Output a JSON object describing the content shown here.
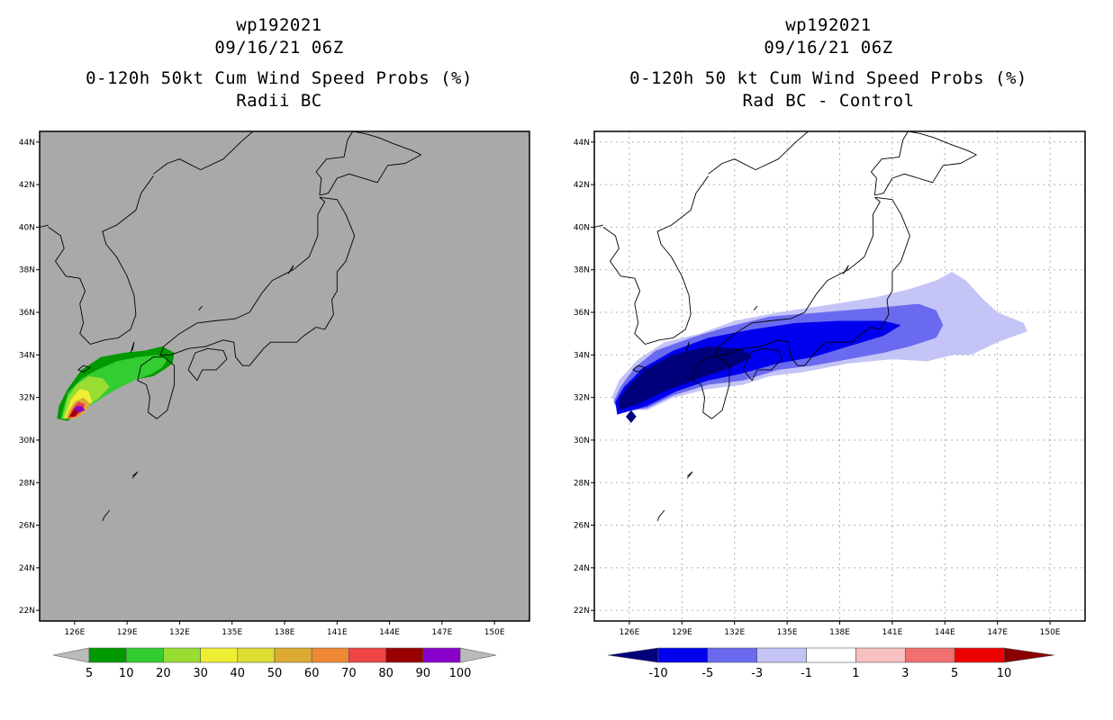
{
  "chart_data": [
    {
      "type": "heatmap",
      "panel": "left",
      "title": [
        "wp192021",
        "09/16/21 06Z",
        "0-120h 50kt Cum Wind Speed Probs (%)",
        "Radii BC"
      ],
      "background_color": "#a9a9a9",
      "xlim": [
        124,
        152
      ],
      "ylim": [
        21.5,
        44.5
      ],
      "x_ticks": [
        126,
        129,
        132,
        135,
        138,
        141,
        144,
        147,
        150
      ],
      "x_tick_labels": [
        "126E",
        "129E",
        "132E",
        "135E",
        "138E",
        "141E",
        "144E",
        "147E",
        "150E"
      ],
      "y_ticks": [
        22,
        24,
        26,
        28,
        30,
        32,
        34,
        36,
        38,
        40,
        42,
        44
      ],
      "y_tick_labels": [
        "22N",
        "24N",
        "26N",
        "28N",
        "30N",
        "32N",
        "34N",
        "36N",
        "38N",
        "40N",
        "42N",
        "44N"
      ],
      "grid": false,
      "colorbar": {
        "levels": [
          "5",
          "10",
          "20",
          "30",
          "40",
          "50",
          "60",
          "70",
          "80",
          "90",
          "100"
        ],
        "colors": [
          "#009900",
          "#33cc33",
          "#99dd33",
          "#eeee33",
          "#dddd33",
          "#ddaa33",
          "#ee8833",
          "#ee4444",
          "#990000",
          "#8800cc"
        ],
        "extend_colors": [
          "#bbbbbb",
          "#bbbbbb"
        ]
      },
      "contours": [
        {
          "level": "5",
          "color": "#009900",
          "polygon": [
            [
              125.0,
              31.0
            ],
            [
              125.6,
              30.9
            ],
            [
              126.4,
              31.3
            ],
            [
              127.3,
              31.9
            ],
            [
              128.2,
              32.3
            ],
            [
              129.2,
              32.8
            ],
            [
              130.5,
              33.0
            ],
            [
              131.1,
              33.3
            ],
            [
              131.6,
              33.6
            ],
            [
              131.7,
              34.1
            ],
            [
              131.0,
              34.4
            ],
            [
              130.0,
              34.2
            ],
            [
              128.8,
              34.1
            ],
            [
              127.5,
              33.9
            ],
            [
              126.4,
              33.3
            ],
            [
              125.6,
              32.4
            ],
            [
              125.1,
              31.6
            ]
          ]
        },
        {
          "level": "10",
          "color": "#33cc33",
          "polygon": [
            [
              125.2,
              31.0
            ],
            [
              125.7,
              31.0
            ],
            [
              126.5,
              31.4
            ],
            [
              127.4,
              31.9
            ],
            [
              128.4,
              32.4
            ],
            [
              129.4,
              32.8
            ],
            [
              130.4,
              33.1
            ],
            [
              131.0,
              33.4
            ],
            [
              131.3,
              33.8
            ],
            [
              130.7,
              34.0
            ],
            [
              129.6,
              33.9
            ],
            [
              128.4,
              33.7
            ],
            [
              127.3,
              33.3
            ],
            [
              126.4,
              32.9
            ],
            [
              125.6,
              32.2
            ]
          ]
        },
        {
          "level": "20",
          "color": "#99dd33",
          "polygon": [
            [
              125.3,
              31.0
            ],
            [
              125.8,
              31.0
            ],
            [
              126.6,
              31.5
            ],
            [
              127.4,
              32.0
            ],
            [
              128.0,
              32.5
            ],
            [
              127.6,
              32.9
            ],
            [
              126.8,
              33.0
            ],
            [
              126.1,
              32.6
            ],
            [
              125.6,
              32.0
            ]
          ]
        },
        {
          "level": "30",
          "color": "#eeee33",
          "polygon": [
            [
              125.4,
              31.0
            ],
            [
              125.9,
              31.0
            ],
            [
              126.6,
              31.4
            ],
            [
              127.0,
              31.8
            ],
            [
              126.8,
              32.3
            ],
            [
              126.3,
              32.4
            ],
            [
              125.8,
              31.9
            ]
          ]
        },
        {
          "level": "50",
          "color": "#ddaa33",
          "polygon": [
            [
              125.5,
              31.0
            ],
            [
              126.0,
              31.0
            ],
            [
              126.6,
              31.3
            ],
            [
              126.9,
              31.7
            ],
            [
              126.5,
              32.0
            ],
            [
              126.0,
              31.8
            ],
            [
              125.7,
              31.4
            ]
          ]
        },
        {
          "level": "70",
          "color": "#ee4444",
          "polygon": [
            [
              125.6,
              31.0
            ],
            [
              126.1,
              31.1
            ],
            [
              126.5,
              31.4
            ],
            [
              126.6,
              31.7
            ],
            [
              126.2,
              31.8
            ],
            [
              125.9,
              31.5
            ]
          ]
        },
        {
          "level": "80",
          "color": "#990000",
          "polygon": [
            [
              125.7,
              31.1
            ],
            [
              126.0,
              31.1
            ],
            [
              126.3,
              31.4
            ],
            [
              126.3,
              31.6
            ],
            [
              126.0,
              31.5
            ]
          ]
        },
        {
          "level": "90",
          "color": "#8800cc",
          "polygon": [
            [
              126.0,
              31.4
            ],
            [
              126.3,
              31.3
            ],
            [
              126.6,
              31.4
            ],
            [
              126.4,
              31.6
            ],
            [
              126.1,
              31.6
            ]
          ]
        }
      ]
    },
    {
      "type": "heatmap",
      "panel": "right",
      "title": [
        "wp192021",
        "09/16/21 06Z",
        "0-120h 50 kt Cum Wind Speed Probs (%)",
        "Rad BC - Control"
      ],
      "background_color": "#ffffff",
      "xlim": [
        124,
        152
      ],
      "ylim": [
        21.5,
        44.5
      ],
      "x_ticks": [
        126,
        129,
        132,
        135,
        138,
        141,
        144,
        147,
        150
      ],
      "x_tick_labels": [
        "126E",
        "129E",
        "132E",
        "135E",
        "138E",
        "141E",
        "144E",
        "147E",
        "150E"
      ],
      "y_ticks": [
        22,
        24,
        26,
        28,
        30,
        32,
        34,
        36,
        38,
        40,
        42,
        44
      ],
      "y_tick_labels": [
        "22N",
        "24N",
        "26N",
        "28N",
        "30N",
        "32N",
        "34N",
        "36N",
        "38N",
        "40N",
        "42N",
        "44N"
      ],
      "grid": true,
      "colorbar": {
        "levels": [
          "-10",
          "-5",
          "-3",
          "-1",
          "1",
          "3",
          "5",
          "10"
        ],
        "colors": [
          "#0000ee",
          "#6a6af0",
          "#c4c4f6",
          "#ffffff",
          "#f8c0c0",
          "#f07070",
          "#ee0000"
        ],
        "extend_colors": [
          "#00007a",
          "#880000"
        ]
      },
      "contours": [
        {
          "level": "-1",
          "color": "#c4c4f6",
          "polygon": [
            [
              125.5,
              31.5
            ],
            [
              127.0,
              31.4
            ],
            [
              128.5,
              32.0
            ],
            [
              130.5,
              32.4
            ],
            [
              132.5,
              32.6
            ],
            [
              134.0,
              33.0
            ],
            [
              136.0,
              33.2
            ],
            [
              138.5,
              33.6
            ],
            [
              141.0,
              33.8
            ],
            [
              143.0,
              33.7
            ],
            [
              144.5,
              34.0
            ],
            [
              145.5,
              34.0
            ],
            [
              147.0,
              34.6
            ],
            [
              148.7,
              35.1
            ],
            [
              148.5,
              35.5
            ],
            [
              147.0,
              36.0
            ],
            [
              146.2,
              36.6
            ],
            [
              145.2,
              37.5
            ],
            [
              144.4,
              37.9
            ],
            [
              143.5,
              37.5
            ],
            [
              142.0,
              37.1
            ],
            [
              140.0,
              36.7
            ],
            [
              137.0,
              36.3
            ],
            [
              134.5,
              36.0
            ],
            [
              132.0,
              35.6
            ],
            [
              130.0,
              35.0
            ],
            [
              128.0,
              34.6
            ],
            [
              126.5,
              33.8
            ],
            [
              125.4,
              32.8
            ],
            [
              125.0,
              32.0
            ]
          ]
        },
        {
          "level": "-3",
          "color": "#6a6af0",
          "polygon": [
            [
              125.4,
              31.3
            ],
            [
              127.0,
              31.5
            ],
            [
              128.5,
              32.1
            ],
            [
              130.5,
              32.6
            ],
            [
              132.5,
              32.8
            ],
            [
              134.5,
              33.3
            ],
            [
              136.5,
              33.5
            ],
            [
              138.5,
              33.8
            ],
            [
              140.5,
              34.1
            ],
            [
              142.0,
              34.4
            ],
            [
              143.5,
              34.8
            ],
            [
              143.9,
              35.4
            ],
            [
              143.5,
              36.1
            ],
            [
              142.5,
              36.4
            ],
            [
              140.0,
              36.2
            ],
            [
              137.0,
              36.0
            ],
            [
              134.0,
              35.8
            ],
            [
              131.5,
              35.3
            ],
            [
              129.5,
              34.8
            ],
            [
              127.5,
              34.2
            ],
            [
              126.3,
              33.4
            ],
            [
              125.5,
              32.5
            ],
            [
              125.1,
              31.8
            ]
          ]
        },
        {
          "level": "-5",
          "color": "#0000ee",
          "polygon": [
            [
              125.3,
              31.2
            ],
            [
              127.0,
              31.6
            ],
            [
              128.7,
              32.3
            ],
            [
              130.5,
              32.8
            ],
            [
              132.3,
              33.1
            ],
            [
              134.5,
              33.6
            ],
            [
              136.5,
              33.9
            ],
            [
              138.5,
              34.4
            ],
            [
              140.5,
              34.9
            ],
            [
              141.5,
              35.4
            ],
            [
              140.5,
              35.6
            ],
            [
              138.0,
              35.6
            ],
            [
              135.5,
              35.5
            ],
            [
              133.0,
              35.2
            ],
            [
              130.5,
              34.8
            ],
            [
              128.5,
              34.2
            ],
            [
              126.8,
              33.4
            ],
            [
              125.7,
              32.5
            ],
            [
              125.2,
              31.8
            ]
          ]
        },
        {
          "level": "-10",
          "color": "#00007a",
          "polygon": [
            [
              125.4,
              31.4
            ],
            [
              126.5,
              31.7
            ],
            [
              128.0,
              32.3
            ],
            [
              130.0,
              32.9
            ],
            [
              131.8,
              33.4
            ],
            [
              133.0,
              33.9
            ],
            [
              132.4,
              34.3
            ],
            [
              130.5,
              34.4
            ],
            [
              128.5,
              34.0
            ],
            [
              126.9,
              33.3
            ],
            [
              125.9,
              32.5
            ],
            [
              125.4,
              31.9
            ]
          ]
        },
        {
          "level": "-10",
          "color": "#00007a",
          "polygon": [
            [
              125.8,
              31.1
            ],
            [
              126.1,
              30.8
            ],
            [
              126.4,
              31.1
            ],
            [
              126.1,
              31.4
            ]
          ]
        }
      ]
    }
  ]
}
